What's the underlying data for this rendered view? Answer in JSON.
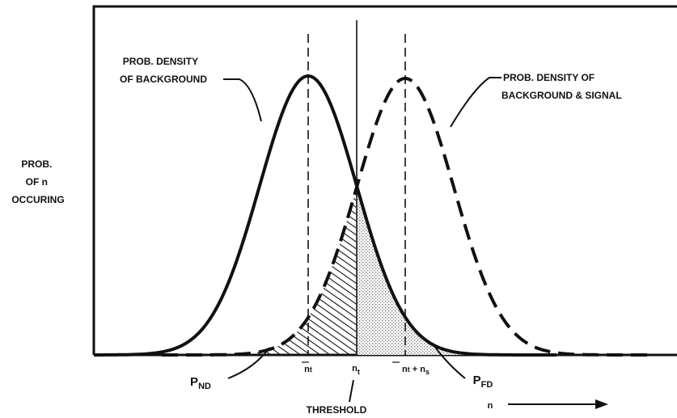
{
  "y_axis_label": [
    "PROB.",
    "OF n",
    "OCCURING"
  ],
  "curve_labels": {
    "background": [
      "PROB. DENSITY",
      "OF BACKGROUND"
    ],
    "background_signal": [
      "PROB. DENSITY OF",
      "BACKGROUND & SIGNAL"
    ]
  },
  "axis_ticks": {
    "nbar_t": {
      "base": "n",
      "sub": "t"
    },
    "n_t": {
      "base": "n",
      "sub": "t"
    },
    "nbar_t_plus_ns": {
      "base": "n",
      "sub": "t",
      "rest": " + n",
      "sub2": "s"
    }
  },
  "regions": {
    "p_nd": {
      "base": "P",
      "sub": "ND"
    },
    "p_fd": {
      "base": "P",
      "sub": "FD"
    }
  },
  "threshold_label": "THRESHOLD",
  "x_axis_label": "n",
  "colors": {
    "ink": "#111111",
    "stipple": "#9a9a9a",
    "paper": "#ffffff"
  }
}
